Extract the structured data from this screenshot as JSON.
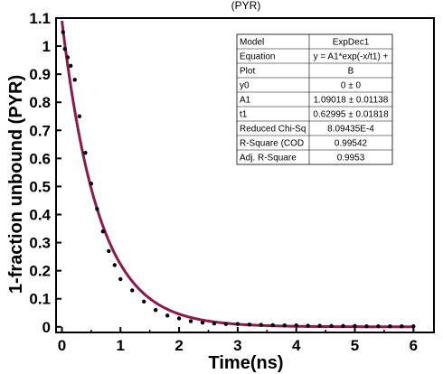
{
  "chart_data": {
    "type": "scatter",
    "title": "",
    "top_label_fragment": "(PYR)",
    "xlabel": "Time(ns)",
    "ylabel": "1-fraction unbound (PYR)",
    "xlim": [
      -0.1,
      6.35
    ],
    "ylim": [
      -0.02,
      1.1
    ],
    "x_ticks": [
      0,
      1,
      2,
      3,
      4,
      5,
      6
    ],
    "y_ticks": [
      0,
      0.1,
      0.2,
      0.3,
      0.4,
      0.5,
      0.6,
      0.7,
      0.8,
      0.9,
      1.0,
      1.1
    ],
    "x_tick_labels": [
      "0",
      "1",
      "2",
      "3",
      "4",
      "5",
      "6"
    ],
    "y_tick_labels": [
      "0",
      "0.1",
      "0.2",
      "0.3",
      "0.4",
      "0.5",
      "0.6",
      "0.7",
      "0.8",
      "0.9",
      "1",
      "1.1"
    ],
    "grid": false,
    "series": [
      {
        "kind": "scatter",
        "color": "#000000",
        "points": [
          [
            0.02,
            1.05
          ],
          [
            0.05,
            0.99
          ],
          [
            0.1,
            0.96
          ],
          [
            0.15,
            0.93
          ],
          [
            0.22,
            0.88
          ],
          [
            0.3,
            0.75
          ],
          [
            0.4,
            0.62
          ],
          [
            0.5,
            0.51
          ],
          [
            0.6,
            0.42
          ],
          [
            0.7,
            0.34
          ],
          [
            0.8,
            0.27
          ],
          [
            0.9,
            0.22
          ],
          [
            1.0,
            0.17
          ],
          [
            1.2,
            0.13
          ],
          [
            1.4,
            0.09
          ],
          [
            1.6,
            0.06
          ],
          [
            1.8,
            0.04
          ],
          [
            2.0,
            0.03
          ],
          [
            2.2,
            0.02
          ],
          [
            2.4,
            0.015
          ],
          [
            2.6,
            0.012
          ],
          [
            2.8,
            0.01
          ],
          [
            3.0,
            0.01
          ],
          [
            3.2,
            0.008
          ],
          [
            3.4,
            0.007
          ],
          [
            3.6,
            0.006
          ],
          [
            3.8,
            0.005
          ],
          [
            4.0,
            0.005
          ],
          [
            4.2,
            0.004
          ],
          [
            4.4,
            0.004
          ],
          [
            4.6,
            0.003
          ],
          [
            4.8,
            0.003
          ],
          [
            5.0,
            0.003
          ],
          [
            5.2,
            0.002
          ],
          [
            5.4,
            0.002
          ],
          [
            5.6,
            0.002
          ],
          [
            5.8,
            0.002
          ],
          [
            6.0,
            0.002
          ]
        ]
      },
      {
        "kind": "fit_line",
        "model": "ExpDec1",
        "color": "#8b1a4a",
        "y0": 0,
        "A1": 1.09018,
        "t1": 0.62995,
        "x_range": [
          0,
          6.0
        ]
      }
    ],
    "fit_table": {
      "legend_placement": "top-right",
      "rows": [
        [
          "Model",
          "ExpDec1"
        ],
        [
          "Equation",
          "y = A1*exp(-x/t1) +"
        ],
        [
          "Plot",
          "B"
        ],
        [
          "y0",
          "0 ± 0"
        ],
        [
          "A1",
          "1.09018 ± 0.01138"
        ],
        [
          "t1",
          "0.62995 ± 0.01818"
        ],
        [
          "Reduced Chi-Sq",
          "8.09435E-4"
        ],
        [
          "R-Square (COD",
          "0.99542"
        ],
        [
          "Adj. R-Square",
          "0.9953"
        ]
      ]
    }
  }
}
